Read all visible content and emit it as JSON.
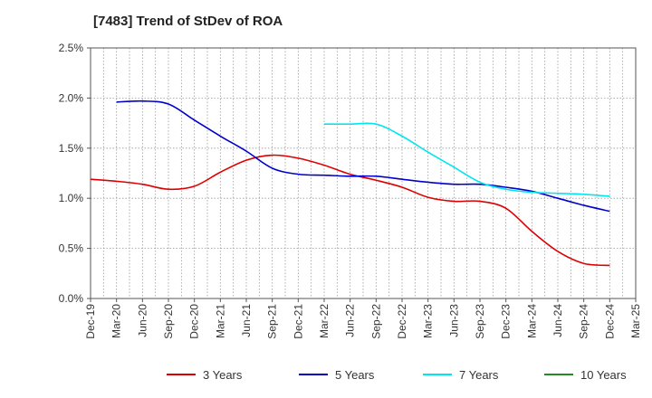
{
  "chart_data": {
    "type": "line",
    "title": "[7483]  Trend of StDev of ROA",
    "xlabel": "",
    "ylabel": "",
    "ylim": [
      0,
      0.025
    ],
    "x_ticks": [
      "Dec-19",
      "Mar-20",
      "Jun-20",
      "Sep-20",
      "Dec-20",
      "Mar-21",
      "Jun-21",
      "Sep-21",
      "Dec-21",
      "Mar-22",
      "Jun-22",
      "Sep-22",
      "Dec-22",
      "Mar-23",
      "Jun-23",
      "Sep-23",
      "Dec-23",
      "Mar-24",
      "Jun-24",
      "Sep-24",
      "Dec-24",
      "Mar-25"
    ],
    "y_ticks": [
      "0.0%",
      "0.5%",
      "1.0%",
      "1.5%",
      "2.0%",
      "2.5%"
    ],
    "grid": true,
    "legend_position": "bottom",
    "series": [
      {
        "name": "3 Years",
        "color": "#dd0000",
        "points": [
          [
            0,
            0.0119
          ],
          [
            1,
            0.0117
          ],
          [
            2,
            0.0114
          ],
          [
            3,
            0.0109
          ],
          [
            4,
            0.0112
          ],
          [
            5,
            0.0126
          ],
          [
            6,
            0.0138
          ],
          [
            7,
            0.0143
          ],
          [
            8,
            0.014
          ],
          [
            9,
            0.0133
          ],
          [
            10,
            0.0124
          ],
          [
            11,
            0.0118
          ],
          [
            12,
            0.0111
          ],
          [
            13,
            0.0101
          ],
          [
            14,
            0.0097
          ],
          [
            15,
            0.0097
          ],
          [
            16,
            0.009
          ],
          [
            17,
            0.0067
          ],
          [
            18,
            0.0047
          ],
          [
            19,
            0.0035
          ],
          [
            20,
            0.0033
          ]
        ]
      },
      {
        "name": "5 Years",
        "color": "#0000cc",
        "points": [
          [
            1,
            0.0196
          ],
          [
            2,
            0.0197
          ],
          [
            3,
            0.0194
          ],
          [
            4,
            0.0178
          ],
          [
            5,
            0.0162
          ],
          [
            6,
            0.0147
          ],
          [
            7,
            0.013
          ],
          [
            8,
            0.0124
          ],
          [
            9,
            0.0123
          ],
          [
            10,
            0.0122
          ],
          [
            11,
            0.0122
          ],
          [
            12,
            0.0119
          ],
          [
            13,
            0.0116
          ],
          [
            14,
            0.0114
          ],
          [
            15,
            0.0114
          ],
          [
            16,
            0.0111
          ],
          [
            17,
            0.0107
          ],
          [
            18,
            0.01
          ],
          [
            19,
            0.0093
          ],
          [
            20,
            0.0087
          ]
        ]
      },
      {
        "name": "7 Years",
        "color": "#00e5ee",
        "points": [
          [
            9,
            0.0174
          ],
          [
            10,
            0.0174
          ],
          [
            11,
            0.0174
          ],
          [
            12,
            0.0162
          ],
          [
            13,
            0.0146
          ],
          [
            14,
            0.0131
          ],
          [
            15,
            0.0116
          ],
          [
            16,
            0.0109
          ],
          [
            17,
            0.0106
          ],
          [
            18,
            0.0105
          ],
          [
            19,
            0.0104
          ],
          [
            20,
            0.0102
          ]
        ]
      },
      {
        "name": "10 Years",
        "color": "#228b22",
        "points": []
      }
    ]
  }
}
